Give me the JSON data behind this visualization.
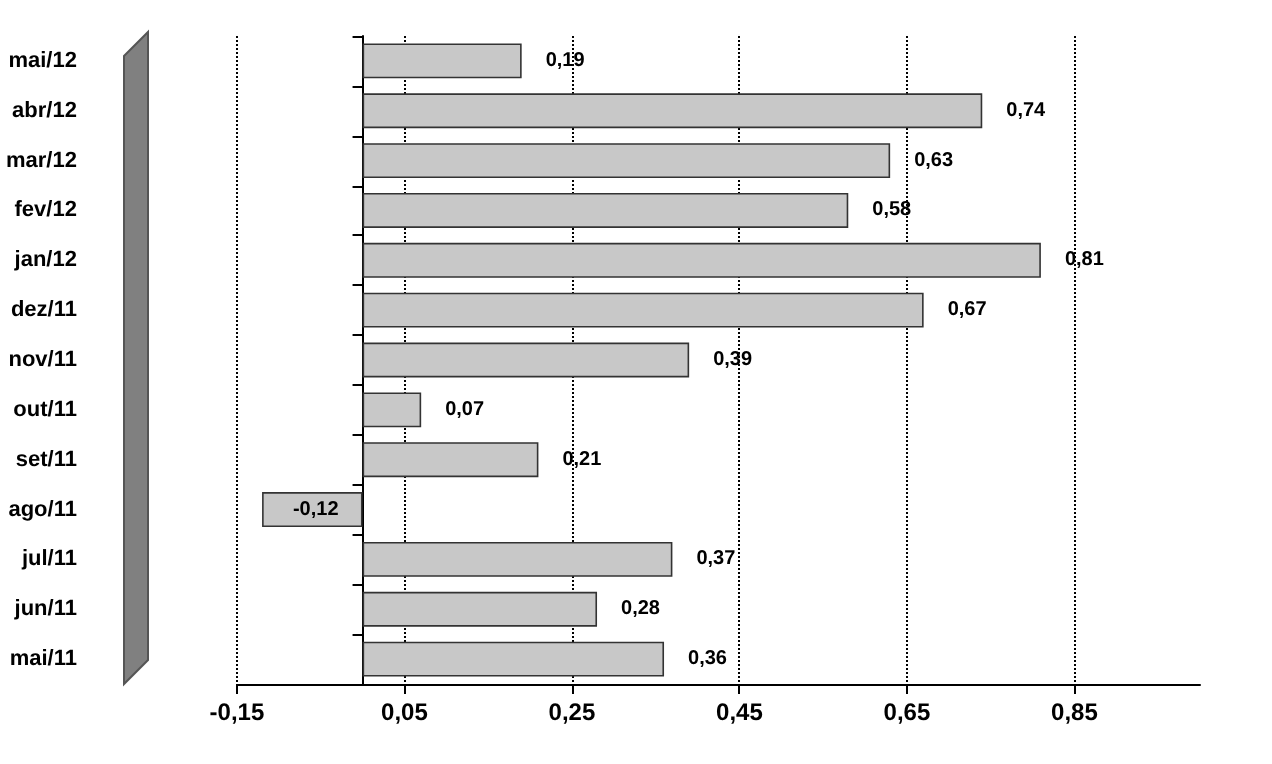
{
  "chart_data": {
    "type": "bar",
    "orientation": "horizontal",
    "categories": [
      "mai/12",
      "abr/12",
      "mar/12",
      "fev/12",
      "jan/12",
      "dez/11",
      "nov/11",
      "out/11",
      "set/11",
      "ago/11",
      "jul/11",
      "jun/11",
      "mai/11"
    ],
    "values": [
      0.19,
      0.74,
      0.63,
      0.58,
      0.81,
      0.67,
      0.39,
      0.07,
      0.21,
      -0.12,
      0.37,
      0.28,
      0.36
    ],
    "value_labels": [
      "0,19",
      "0,74",
      "0,63",
      "0,58",
      "0,81",
      "0,67",
      "0,39",
      "0,07",
      "0,21",
      "-0,12",
      "0,37",
      "0,28",
      "0,36"
    ],
    "color": "#c8c8c8",
    "xlim": [
      -0.15,
      1.0
    ],
    "xticks": [
      {
        "value": -0.15,
        "label": "-0,15"
      },
      {
        "value": 0.05,
        "label": "0,05"
      },
      {
        "value": 0.25,
        "label": "0,25"
      },
      {
        "value": 0.45,
        "label": "0,45"
      },
      {
        "value": 0.65,
        "label": "0,65"
      },
      {
        "value": 0.85,
        "label": "0,85"
      }
    ],
    "grid": "x",
    "line_style": "dotted"
  }
}
